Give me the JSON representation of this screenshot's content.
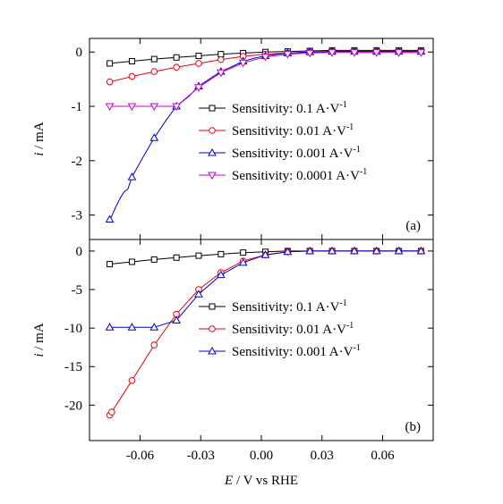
{
  "chart_data": [
    {
      "type": "line",
      "panel_label": "(a)",
      "ylabel_italic": "i",
      "ylabel_rest": " / mA",
      "xlim": [
        -0.085,
        0.085
      ],
      "ylim": [
        -3.45,
        0.25
      ],
      "yticks": [
        0,
        -1,
        -2,
        -3
      ],
      "ytick_labels": [
        "0",
        "-1",
        "-2",
        "-3"
      ],
      "xticks": [
        -0.06,
        -0.03,
        0.0,
        0.03,
        0.06
      ],
      "legend_position": "middle-right",
      "series": [
        {
          "name_main": "Sensitivity: 0.1 A·V",
          "name_sup": "-1",
          "color": "#000000",
          "marker": "square",
          "x": [
            -0.075,
            -0.064,
            -0.053,
            -0.042,
            -0.031,
            -0.02,
            -0.009,
            0.002,
            0.013,
            0.024,
            0.035,
            0.046,
            0.057,
            0.068,
            0.079
          ],
          "y": [
            -0.21,
            -0.17,
            -0.13,
            -0.1,
            -0.07,
            -0.04,
            -0.02,
            0.0,
            0.01,
            0.02,
            0.03,
            0.03,
            0.03,
            0.03,
            0.03
          ]
        },
        {
          "name_main": "Sensitivity: 0.01 A·V",
          "name_sup": "-1",
          "color": "#e8000b",
          "marker": "circle",
          "x": [
            -0.075,
            -0.064,
            -0.053,
            -0.042,
            -0.031,
            -0.02,
            -0.009,
            0.002,
            0.013,
            0.024,
            0.035,
            0.046,
            0.057,
            0.068,
            0.079
          ],
          "y": [
            -0.55,
            -0.45,
            -0.36,
            -0.28,
            -0.21,
            -0.14,
            -0.08,
            -0.04,
            -0.02,
            0.0,
            0.01,
            0.01,
            0.01,
            0.01,
            0.01
          ]
        },
        {
          "name_main": "Sensitivity: 0.001 A·V",
          "name_sup": "-1",
          "color": "#0000cc",
          "marker": "triangle-up",
          "x": [
            -0.075,
            -0.074,
            -0.072,
            -0.07,
            -0.068,
            -0.066,
            -0.064,
            -0.058,
            -0.053,
            -0.047,
            -0.042,
            -0.036,
            -0.031,
            -0.025,
            -0.02,
            -0.014,
            -0.009,
            -0.003,
            0.002,
            0.008,
            0.013,
            0.024,
            0.035,
            0.046,
            0.057,
            0.068,
            0.079
          ],
          "y": [
            -3.08,
            -3.02,
            -2.85,
            -2.7,
            -2.58,
            -2.52,
            -2.3,
            -1.9,
            -1.58,
            -1.25,
            -1.0,
            -0.82,
            -0.63,
            -0.48,
            -0.36,
            -0.26,
            -0.17,
            -0.11,
            -0.07,
            -0.04,
            -0.02,
            0.0,
            0.01,
            0.01,
            0.01,
            0.01,
            0.01
          ],
          "marker_x": [
            -0.075,
            -0.064,
            -0.053,
            -0.042,
            -0.031,
            -0.02,
            -0.009,
            0.002,
            0.013,
            0.024,
            0.035,
            0.046,
            0.057,
            0.068,
            0.079
          ]
        },
        {
          "name_main": "Sensitivity: 0.0001 A·V",
          "name_sup": "-1",
          "color": "#cc00cc",
          "marker": "triangle-down",
          "x": [
            -0.075,
            -0.064,
            -0.053,
            -0.042,
            -0.031,
            -0.02,
            -0.009,
            0.002,
            0.013,
            0.024,
            0.035,
            0.046,
            0.057,
            0.068,
            0.079
          ],
          "y": [
            -1.0,
            -1.0,
            -1.0,
            -1.0,
            -0.65,
            -0.38,
            -0.2,
            -0.09,
            -0.04,
            -0.02,
            -0.01,
            -0.01,
            -0.01,
            -0.01,
            -0.01
          ]
        }
      ]
    },
    {
      "type": "line",
      "panel_label": "(b)",
      "ylabel_italic": "i",
      "ylabel_rest": " / mA",
      "xlim": [
        -0.085,
        0.085
      ],
      "ylim": [
        -24.6,
        1.5
      ],
      "yticks": [
        0,
        -5,
        -10,
        -15,
        -20
      ],
      "ytick_labels": [
        "0",
        "-5",
        "-10",
        "-15",
        "-20"
      ],
      "xticks": [
        -0.06,
        -0.03,
        0.0,
        0.03,
        0.06
      ],
      "xtick_labels": [
        "-0.06",
        "-0.03",
        "0.00",
        "0.03",
        "0.06"
      ],
      "xlabel_italic": "E",
      "xlabel_rest": " / V vs RHE",
      "legend_position": "middle-right",
      "series": [
        {
          "name_main": "Sensitivity: 0.1 A·V",
          "name_sup": "-1",
          "color": "#000000",
          "marker": "square",
          "x": [
            -0.075,
            -0.064,
            -0.053,
            -0.042,
            -0.031,
            -0.02,
            -0.009,
            0.002,
            0.013,
            0.024,
            0.035,
            0.046,
            0.057,
            0.068,
            0.079
          ],
          "y": [
            -1.7,
            -1.4,
            -1.1,
            -0.85,
            -0.6,
            -0.4,
            -0.2,
            -0.1,
            0.0,
            0.0,
            0.0,
            0.0,
            0.0,
            0.0,
            0.0
          ]
        },
        {
          "name_main": "Sensitivity: 0.01 A·V",
          "name_sup": "-1",
          "color": "#e8000b",
          "marker": "circle",
          "x": [
            -0.075,
            -0.074,
            -0.064,
            -0.053,
            -0.042,
            -0.031,
            -0.02,
            -0.009,
            0.002,
            0.013,
            0.024,
            0.035,
            0.046,
            0.057,
            0.068,
            0.079
          ],
          "y": [
            -21.3,
            -20.9,
            -16.8,
            -12.2,
            -8.2,
            -5.0,
            -2.8,
            -1.3,
            -0.5,
            -0.1,
            0.0,
            0.0,
            0.0,
            0.0,
            0.0,
            0.0
          ]
        },
        {
          "name_main": "Sensitivity: 0.001 A·V",
          "name_sup": "-1",
          "color": "#0000cc",
          "marker": "triangle-up",
          "x": [
            -0.075,
            -0.064,
            -0.053,
            -0.042,
            -0.031,
            -0.02,
            -0.009,
            0.002,
            0.013,
            0.024,
            0.035,
            0.046,
            0.057,
            0.068,
            0.079
          ],
          "y": [
            -9.9,
            -9.9,
            -9.9,
            -9.0,
            -5.6,
            -3.1,
            -1.5,
            -0.5,
            -0.1,
            0.0,
            0.0,
            0.0,
            0.0,
            0.0,
            0.0
          ]
        }
      ]
    }
  ]
}
